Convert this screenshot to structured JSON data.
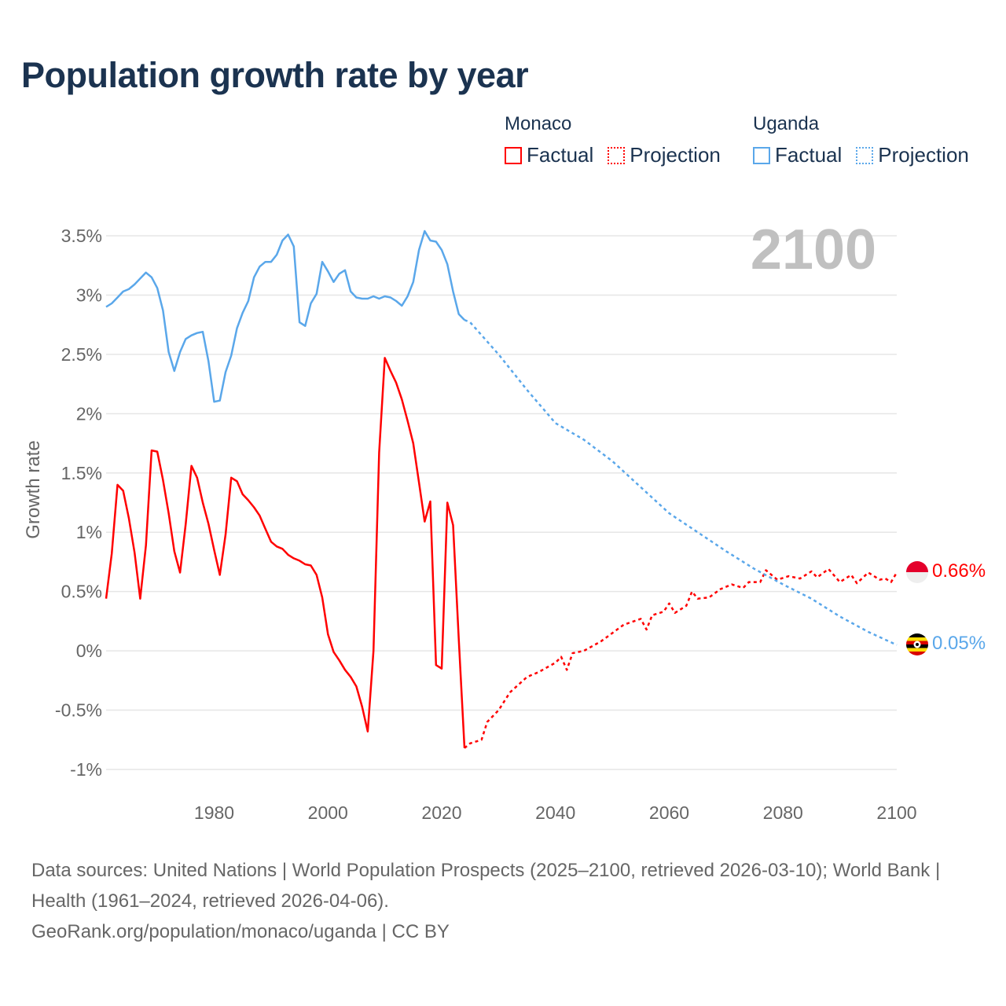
{
  "title": "Population growth rate by year",
  "legend": {
    "groups": [
      {
        "country": "Monaco",
        "factual": "Factual",
        "projection": "Projection",
        "color": "#ff0000"
      },
      {
        "country": "Uganda",
        "factual": "Factual",
        "projection": "Projection",
        "color": "#5aa7ea"
      }
    ]
  },
  "year_overlay": "2100",
  "end_labels": {
    "monaco": "0.66%",
    "uganda": "0.05%"
  },
  "footer": {
    "sources": "Data sources: United Nations | World Population Prospects (2025–2100, retrieved 2026-03-10); World Bank | Health (1961–2024, retrieved 2026-04-06).",
    "credit": "GeoRank.org/population/monaco/uganda | CC BY"
  },
  "chart_data": {
    "type": "line",
    "title": "Population growth rate by year",
    "xlabel": "",
    "ylabel": "Growth rate",
    "xlim": [
      1961,
      2100
    ],
    "ylim": [
      -1,
      3.5
    ],
    "x_ticks": [
      "1980",
      "2000",
      "2020",
      "2040",
      "2060",
      "2080",
      "2100"
    ],
    "y_ticks": [
      "3.5%",
      "3%",
      "2.5%",
      "2%",
      "1.5%",
      "1%",
      "0.5%",
      "0%",
      "-0.5%",
      "-1%"
    ],
    "grid": true,
    "legend_position": "top-right",
    "series": [
      {
        "name": "Monaco Factual",
        "color": "#ff0000",
        "style": "solid",
        "x": [
          1961,
          1962,
          1963,
          1964,
          1965,
          1966,
          1967,
          1968,
          1969,
          1970,
          1971,
          1972,
          1973,
          1974,
          1975,
          1976,
          1977,
          1978,
          1979,
          1980,
          1981,
          1982,
          1983,
          1984,
          1985,
          1986,
          1987,
          1988,
          1989,
          1990,
          1991,
          1992,
          1993,
          1994,
          1995,
          1996,
          1997,
          1998,
          1999,
          2000,
          2001,
          2002,
          2003,
          2004,
          2005,
          2006,
          2007,
          2008,
          2009,
          2010,
          2011,
          2012,
          2013,
          2014,
          2015,
          2016,
          2017,
          2018,
          2019,
          2020,
          2021,
          2022,
          2023,
          2024
        ],
        "y": [
          0.44,
          0.82,
          1.4,
          1.35,
          1.12,
          0.83,
          0.44,
          0.89,
          1.69,
          1.68,
          1.44,
          1.16,
          0.84,
          0.66,
          1.07,
          1.56,
          1.46,
          1.25,
          1.07,
          0.85,
          0.64,
          0.98,
          1.46,
          1.43,
          1.32,
          1.27,
          1.21,
          1.14,
          1.03,
          0.92,
          0.88,
          0.86,
          0.81,
          0.78,
          0.76,
          0.73,
          0.72,
          0.64,
          0.45,
          0.14,
          -0.01,
          -0.08,
          -0.16,
          -0.22,
          -0.3,
          -0.47,
          -0.68,
          0.0,
          1.67,
          2.47,
          2.36,
          2.26,
          2.12,
          1.94,
          1.75,
          1.42,
          1.09,
          1.26,
          -0.12,
          -0.15,
          1.25,
          1.06,
          0.1,
          -0.82
        ]
      },
      {
        "name": "Monaco Projection",
        "color": "#ff0000",
        "style": "dotted",
        "x": [
          2024,
          2025,
          2027,
          2028,
          2030,
          2032,
          2035,
          2037,
          2040,
          2041,
          2042,
          2043,
          2045,
          2048,
          2050,
          2052,
          2055,
          2056,
          2057,
          2059,
          2060,
          2061,
          2063,
          2064,
          2065,
          2067,
          2069,
          2071,
          2073,
          2074,
          2076,
          2077,
          2079,
          2081,
          2083,
          2085,
          2086,
          2088,
          2090,
          2092,
          2093,
          2095,
          2097,
          2098,
          2099,
          2100
        ],
        "y": [
          -0.82,
          -0.78,
          -0.75,
          -0.6,
          -0.5,
          -0.35,
          -0.22,
          -0.18,
          -0.1,
          -0.05,
          -0.16,
          -0.02,
          0.0,
          0.08,
          0.15,
          0.22,
          0.27,
          0.18,
          0.3,
          0.33,
          0.4,
          0.32,
          0.38,
          0.5,
          0.44,
          0.45,
          0.52,
          0.56,
          0.53,
          0.58,
          0.58,
          0.68,
          0.6,
          0.63,
          0.61,
          0.67,
          0.62,
          0.69,
          0.58,
          0.64,
          0.57,
          0.66,
          0.6,
          0.61,
          0.58,
          0.66
        ]
      },
      {
        "name": "Uganda Factual",
        "color": "#5aa7ea",
        "style": "solid",
        "x": [
          1961,
          1962,
          1963,
          1964,
          1965,
          1966,
          1967,
          1968,
          1969,
          1970,
          1971,
          1972,
          1973,
          1974,
          1975,
          1976,
          1977,
          1978,
          1979,
          1980,
          1981,
          1982,
          1983,
          1984,
          1985,
          1986,
          1987,
          1988,
          1989,
          1990,
          1991,
          1992,
          1993,
          1994,
          1995,
          1996,
          1997,
          1998,
          1999,
          2000,
          2001,
          2002,
          2003,
          2004,
          2005,
          2006,
          2007,
          2008,
          2009,
          2010,
          2011,
          2012,
          2013,
          2014,
          2015,
          2016,
          2017,
          2018,
          2019,
          2020,
          2021,
          2022,
          2023,
          2024
        ],
        "y": [
          2.9,
          2.93,
          2.98,
          3.03,
          3.05,
          3.09,
          3.14,
          3.19,
          3.15,
          3.06,
          2.87,
          2.52,
          2.36,
          2.52,
          2.63,
          2.66,
          2.68,
          2.69,
          2.44,
          2.1,
          2.11,
          2.35,
          2.49,
          2.72,
          2.85,
          2.95,
          3.15,
          3.24,
          3.28,
          3.28,
          3.34,
          3.46,
          3.51,
          3.41,
          2.77,
          2.74,
          2.93,
          3.01,
          3.28,
          3.2,
          3.11,
          3.18,
          3.21,
          3.03,
          2.98,
          2.97,
          2.97,
          2.99,
          2.97,
          2.99,
          2.98,
          2.95,
          2.91,
          2.99,
          3.11,
          3.38,
          3.54,
          3.46,
          3.45,
          3.38,
          3.26,
          3.03,
          2.84,
          2.79
        ]
      },
      {
        "name": "Uganda Projection",
        "color": "#5aa7ea",
        "style": "dotted",
        "x": [
          2024,
          2025,
          2030,
          2035,
          2040,
          2045,
          2050,
          2055,
          2060,
          2065,
          2070,
          2075,
          2080,
          2085,
          2090,
          2095,
          2100
        ],
        "y": [
          2.79,
          2.77,
          2.5,
          2.2,
          1.92,
          1.78,
          1.6,
          1.38,
          1.16,
          1.0,
          0.84,
          0.69,
          0.56,
          0.44,
          0.29,
          0.16,
          0.05
        ]
      }
    ]
  }
}
